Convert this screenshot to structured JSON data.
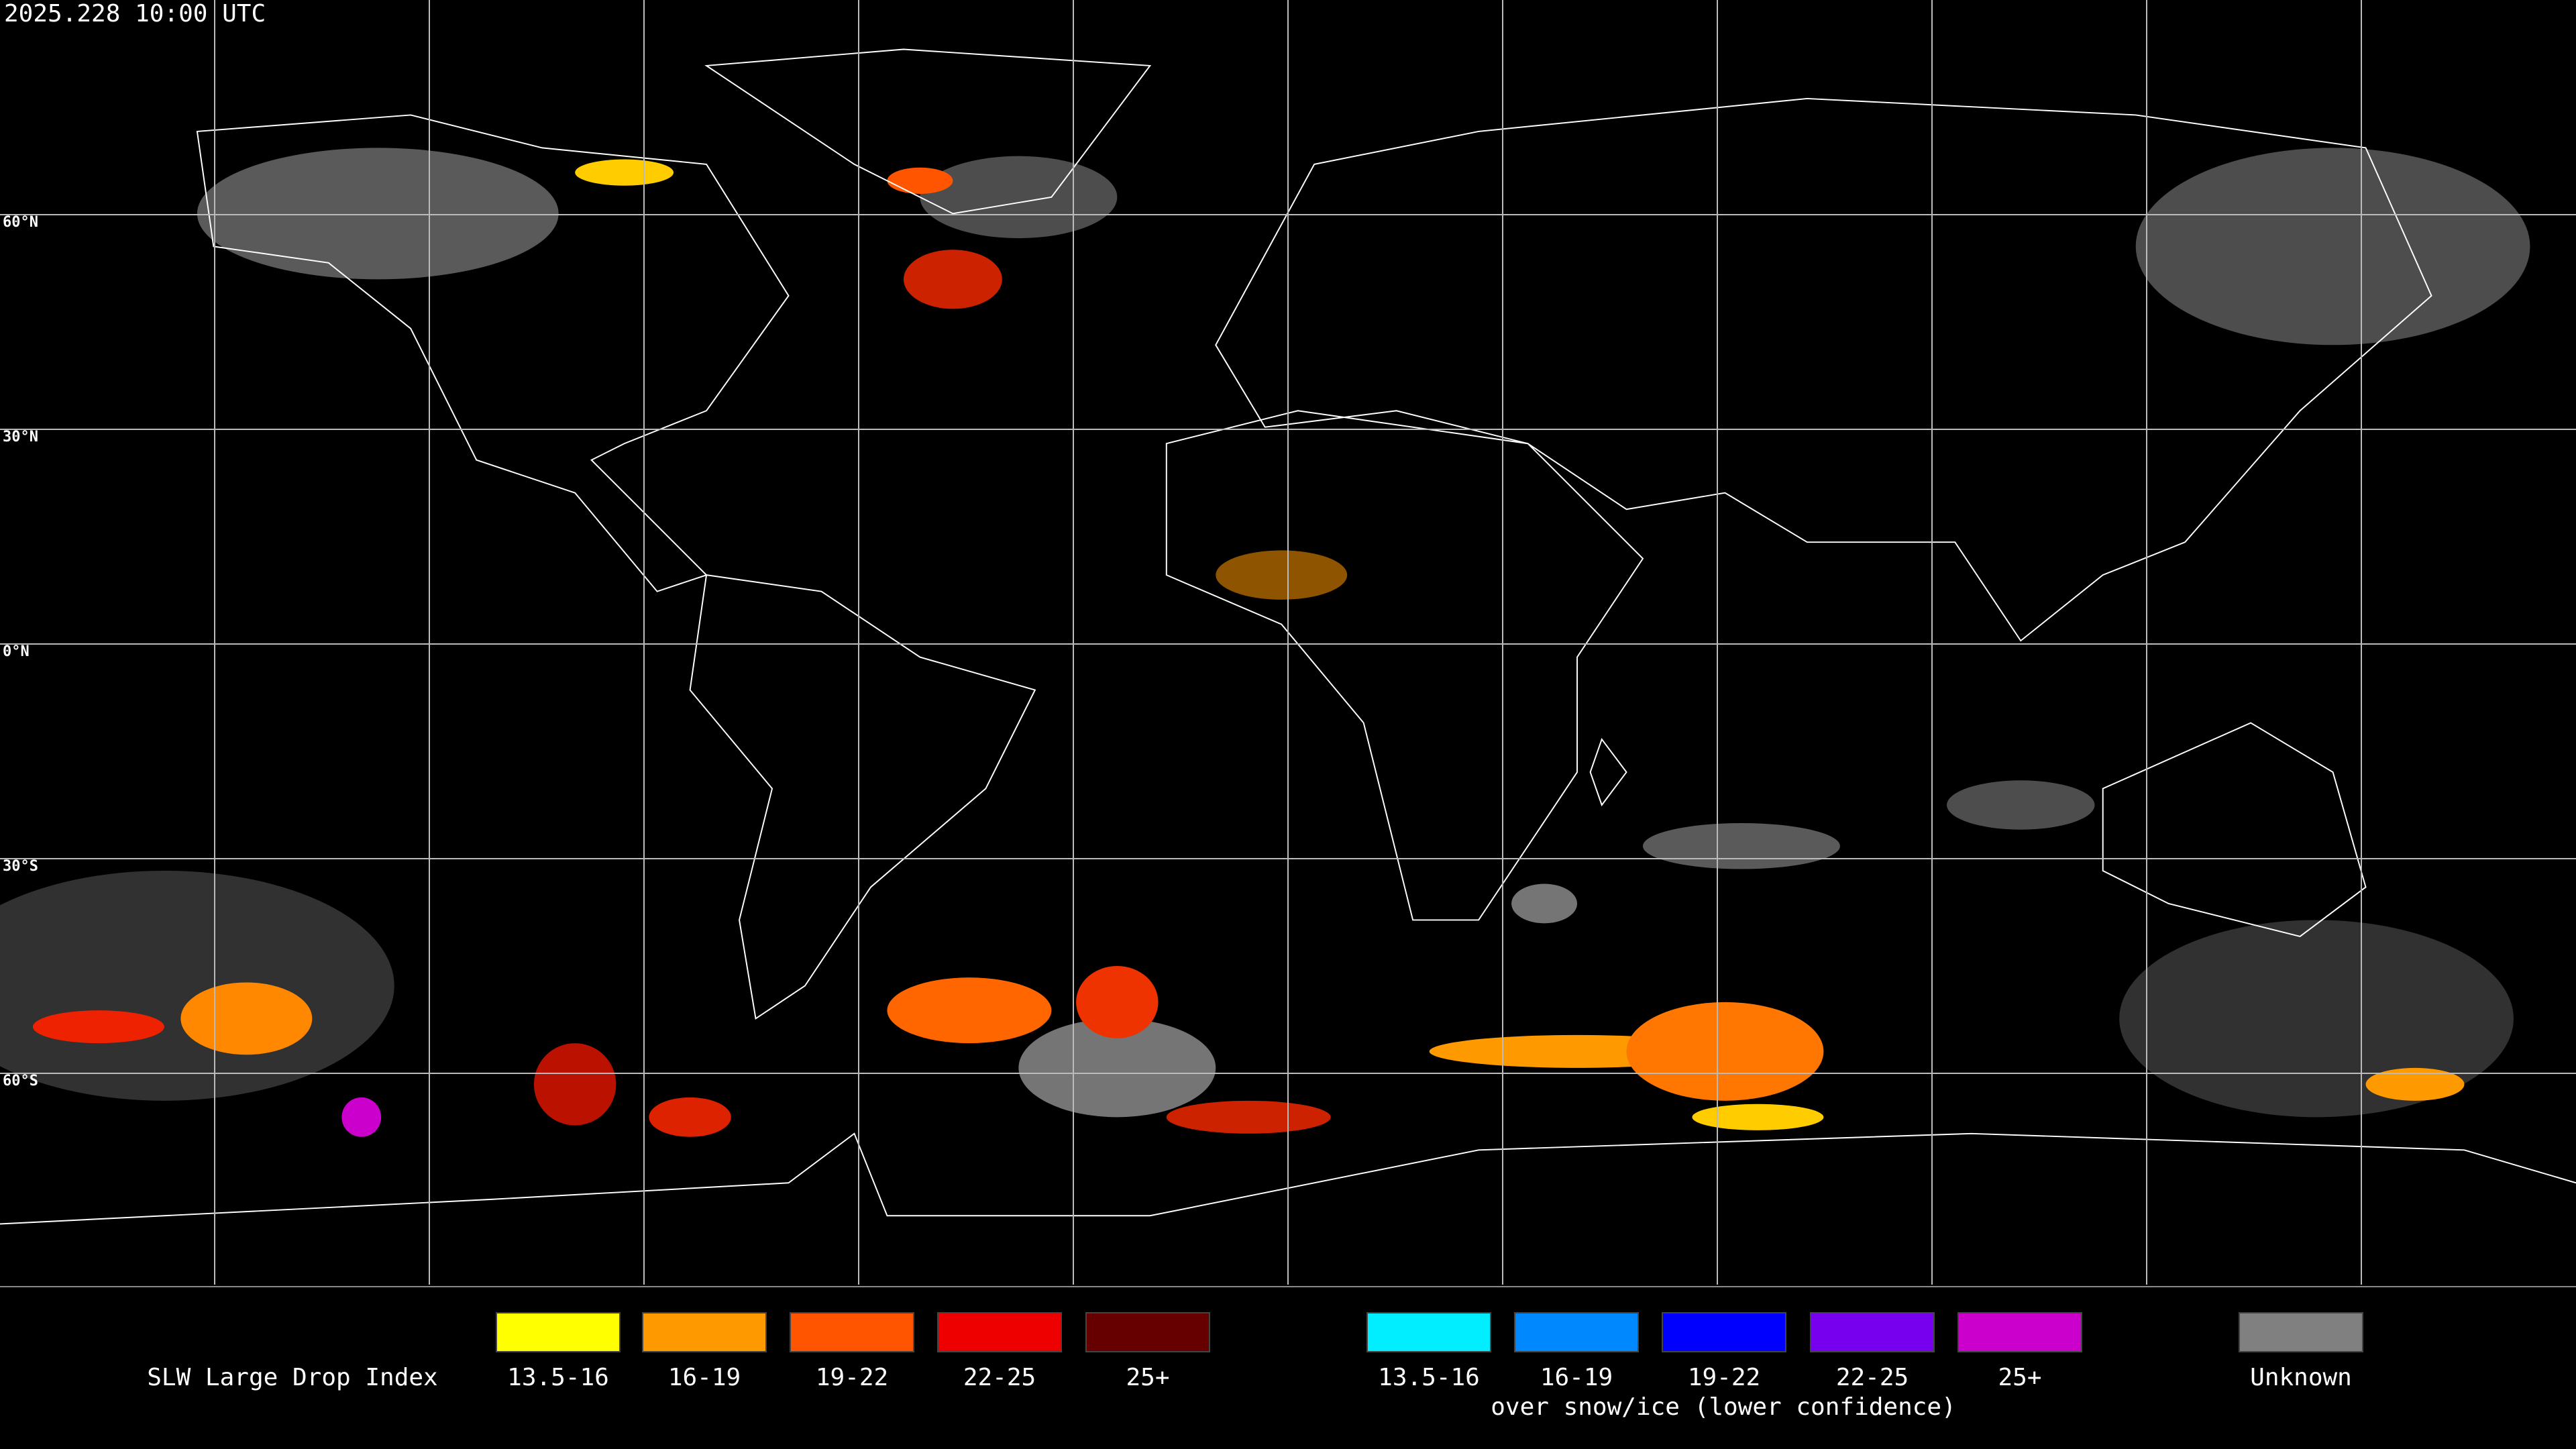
{
  "header": {
    "timestamp": "2025.228 10:00 UTC"
  },
  "map": {
    "latitude_labels": [
      "60°N",
      "30°N",
      "0°N",
      "30°S",
      "60°S"
    ]
  },
  "legend": {
    "title": "SLW Large Drop Index",
    "groups": [
      {
        "items": [
          {
            "label": "13.5-16",
            "color": "#ffff00"
          },
          {
            "label": "16-19",
            "color": "#ff9900"
          },
          {
            "label": "19-22",
            "color": "#ff5500"
          },
          {
            "label": "22-25",
            "color": "#ee0000"
          },
          {
            "label": "25+",
            "color": "#660000"
          }
        ]
      },
      {
        "items": [
          {
            "label": "13.5-16",
            "color": "#00eeff"
          },
          {
            "label": "16-19",
            "color": "#0088ff"
          },
          {
            "label": "19-22",
            "color": "#0000ff"
          },
          {
            "label": "22-25",
            "color": "#7700ee"
          },
          {
            "label": "25+",
            "color": "#cc00cc"
          }
        ],
        "caption": "over snow/ice (lower confidence)"
      },
      {
        "items": [
          {
            "label": "Unknown",
            "color": "#808080"
          }
        ]
      }
    ]
  }
}
